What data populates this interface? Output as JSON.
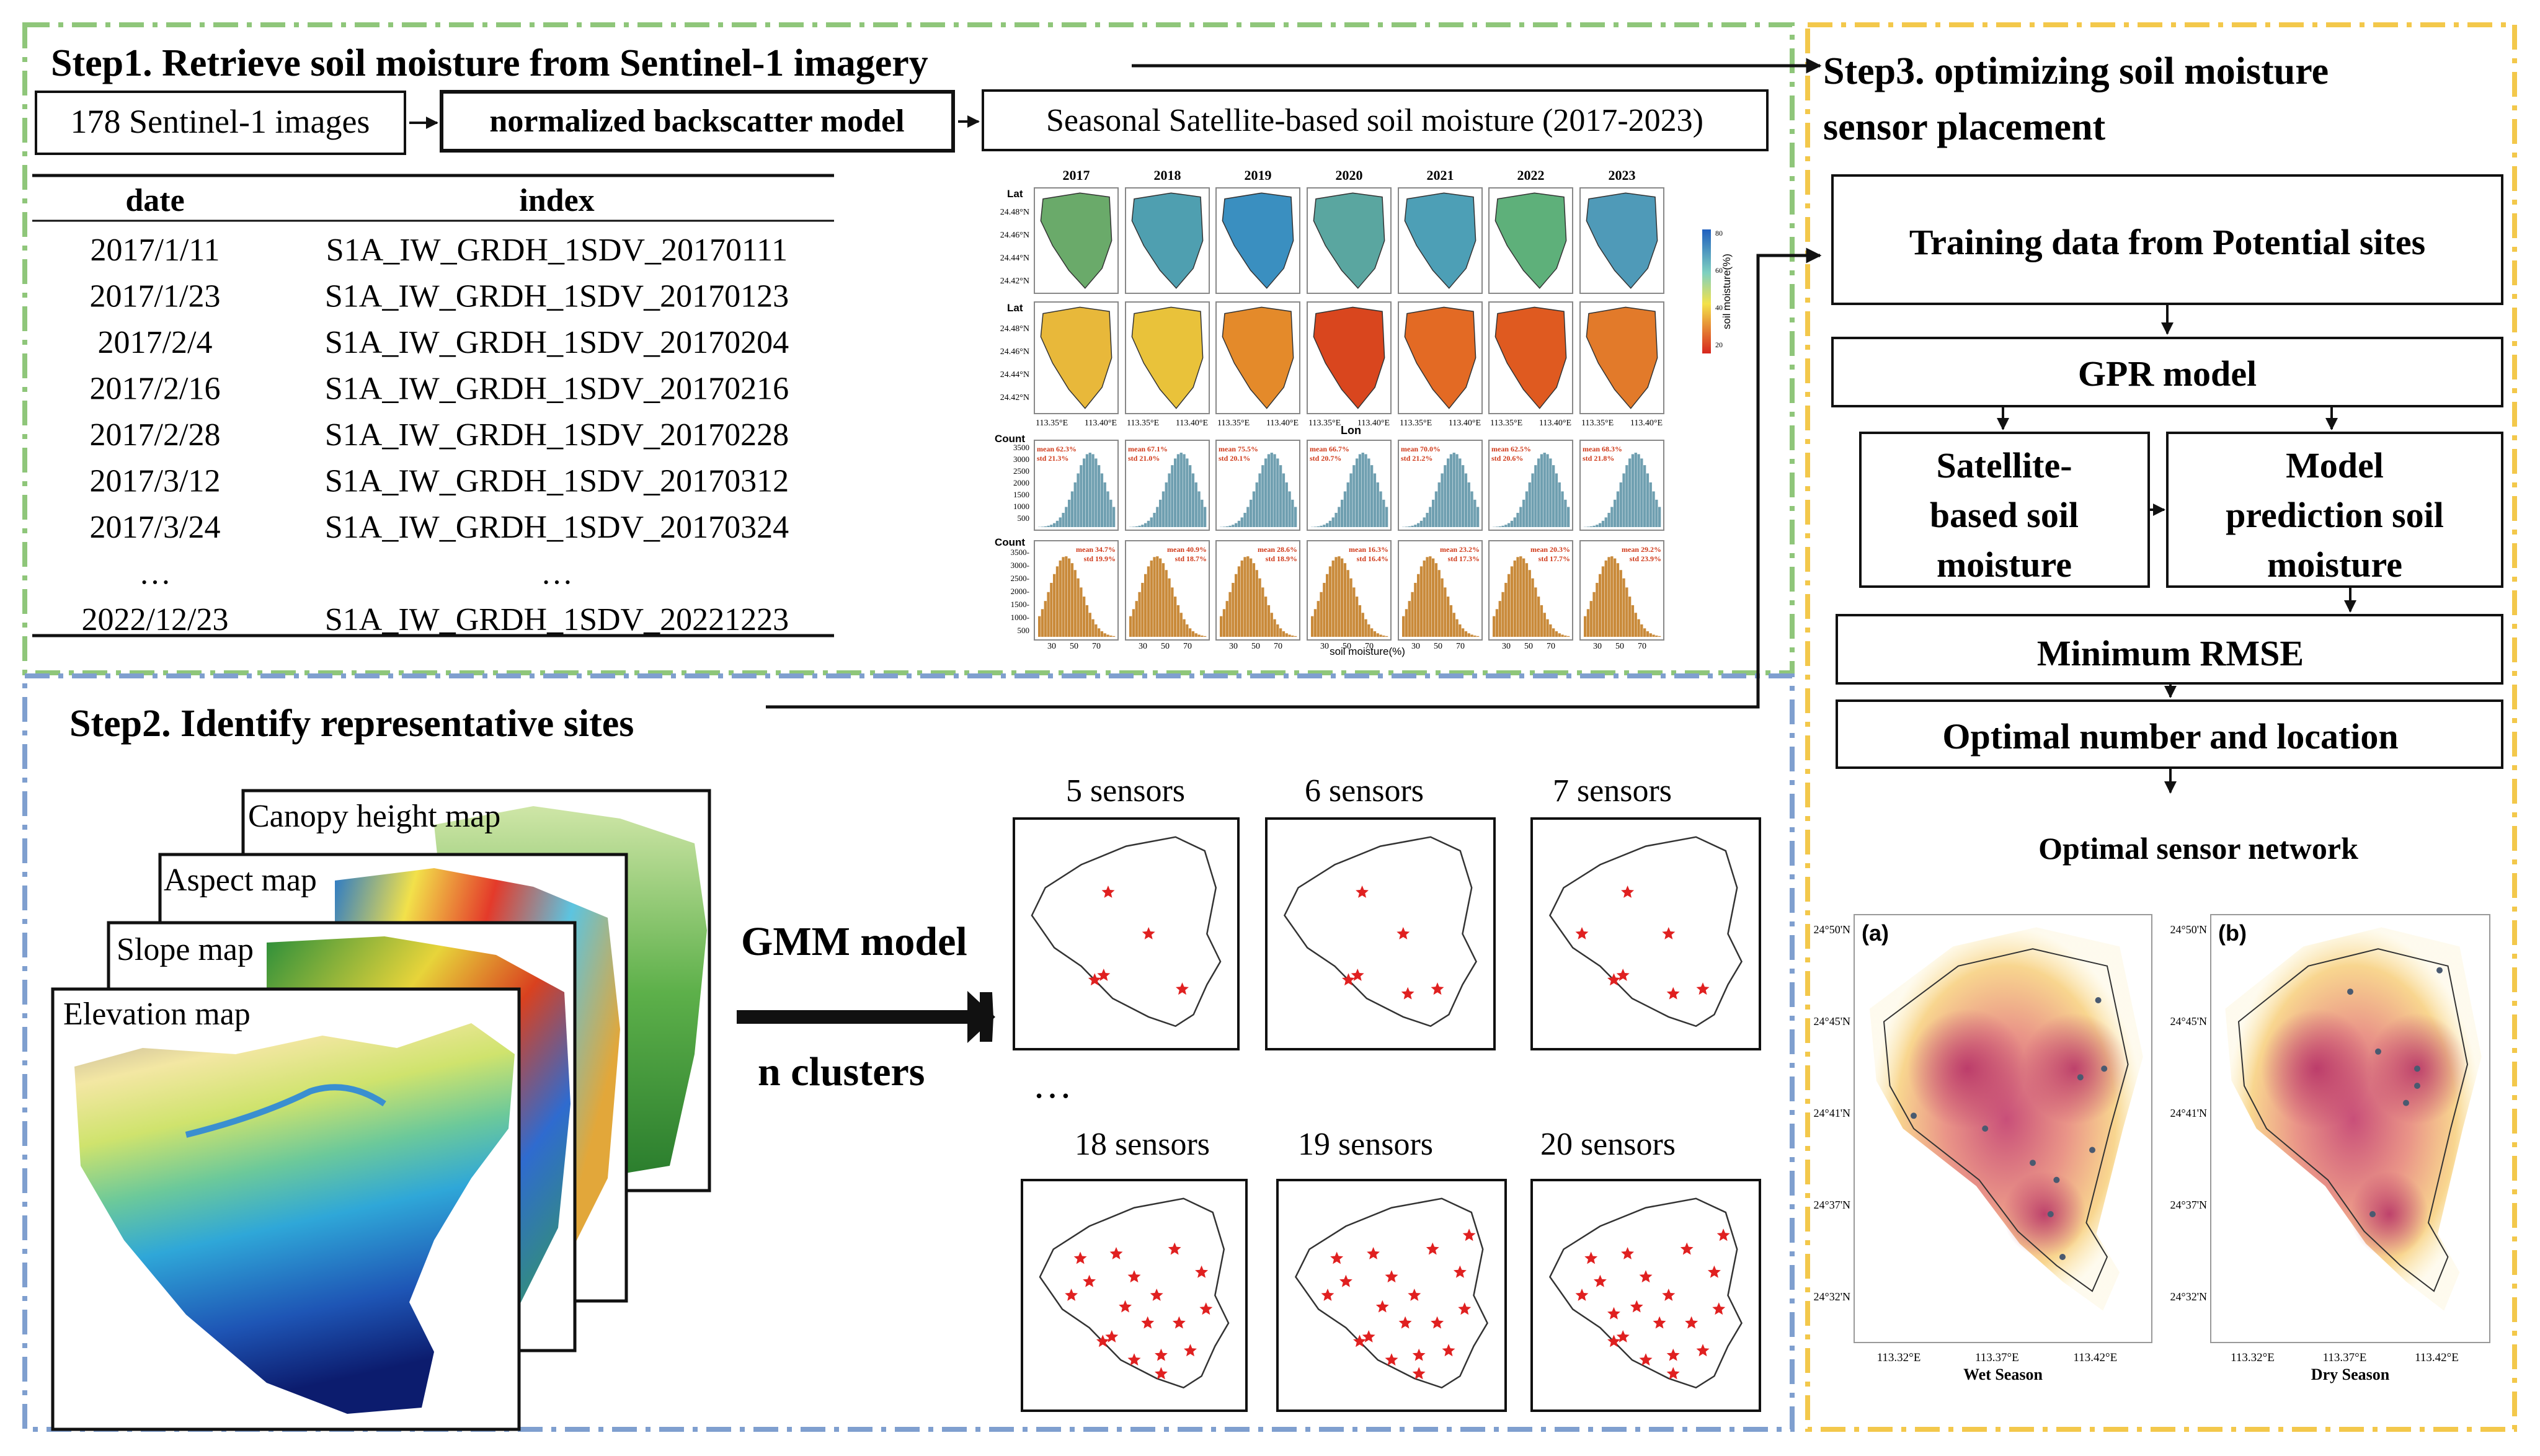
{
  "step1": {
    "title": "Step1. Retrieve soil moisture from Sentinel-1 imagery",
    "box_images": "178 Sentinel-1 images",
    "box_model": "normalized backscatter model",
    "box_seasonal": "Seasonal Satellite-based soil moisture (2017-2023)",
    "table": {
      "headers": [
        "date",
        "index"
      ],
      "rows": [
        [
          "2017/1/11",
          "S1A_IW_GRDH_1SDV_20170111"
        ],
        [
          "2017/1/23",
          "S1A_IW_GRDH_1SDV_20170123"
        ],
        [
          "2017/2/4",
          "S1A_IW_GRDH_1SDV_20170204"
        ],
        [
          "2017/2/16",
          "S1A_IW_GRDH_1SDV_20170216"
        ],
        [
          "2017/2/28",
          "S1A_IW_GRDH_1SDV_20170228"
        ],
        [
          "2017/3/12",
          "S1A_IW_GRDH_1SDV_20170312"
        ],
        [
          "2017/3/24",
          "S1A_IW_GRDH_1SDV_20170324"
        ],
        [
          "…",
          "…"
        ],
        [
          "2022/12/23",
          "S1A_IW_GRDH_1SDV_20221223"
        ]
      ]
    },
    "mini": {
      "years": [
        "2017",
        "2018",
        "2019",
        "2020",
        "2021",
        "2022",
        "2023"
      ],
      "lat_label": "Lat",
      "lat_ticks": [
        "24.48°N",
        "24.46°N",
        "24.44°N",
        "24.42°N"
      ],
      "lon_ticks": [
        "113.35°E",
        "113.40°E"
      ],
      "lon_label": "Lon",
      "colorbar_label": "soil moisture(%)",
      "colorbar_ticks": [
        "80",
        "60",
        "40",
        "20"
      ],
      "count_label": "Count",
      "hist1_ticks": [
        "3500",
        "3000",
        "2500",
        "2000",
        "1500",
        "1000",
        "500"
      ],
      "hist2_ticks": [
        "3500-",
        "3000-",
        "2500-",
        "2000-",
        "1500-",
        "1000-",
        "500"
      ],
      "x_ticks": [
        "30",
        "50",
        "70"
      ],
      "x_label": "soil moisture(%)",
      "wet_stats": [
        [
          "mean 62.3%",
          "std 21.3%"
        ],
        [
          "mean 67.1%",
          "std 21.0%"
        ],
        [
          "mean 75.5%",
          "std 20.1%"
        ],
        [
          "mean 66.7%",
          "std 20.7%"
        ],
        [
          "mean 70.0%",
          "std 21.2%"
        ],
        [
          "mean 62.5%",
          "std 20.6%"
        ],
        [
          "mean 68.3%",
          "std 21.8%"
        ]
      ],
      "dry_stats": [
        [
          "mean 34.7%",
          "std 19.9%"
        ],
        [
          "mean 40.9%",
          "std 18.7%"
        ],
        [
          "mean 28.6%",
          "std 18.9%"
        ],
        [
          "mean 16.3%",
          "std 16.4%"
        ],
        [
          "mean 23.2%",
          "std 17.3%"
        ],
        [
          "mean 20.3%",
          "std 17.7%"
        ],
        [
          "mean 29.2%",
          "std 23.9%"
        ]
      ]
    }
  },
  "step2": {
    "title": "Step2. Identify representative sites",
    "maps": [
      "Canopy height map",
      "Aspect map",
      "Slope map",
      "Elevation map"
    ],
    "gmm_label": "GMM model",
    "clusters_label": "n clusters",
    "ellipsis": "…",
    "sensor_panels": [
      {
        "label": "5 sensors",
        "count": 5
      },
      {
        "label": "6 sensors",
        "count": 6
      },
      {
        "label": "7 sensors",
        "count": 7
      },
      {
        "label": "18 sensors",
        "count": 18
      },
      {
        "label": "19 sensors",
        "count": 19
      },
      {
        "label": "20 sensors",
        "count": 20
      }
    ]
  },
  "step3": {
    "title_line1": "Step3. optimizing soil moisture",
    "title_line2": "sensor placement",
    "box_training": "Training data from Potential sites",
    "box_gpr": "GPR model",
    "box_satellite": [
      "Satellite-",
      "based soil",
      "moisture"
    ],
    "box_model_pred": [
      "Model",
      "prediction soil",
      "moisture"
    ],
    "box_rmse": "Minimum RMSE",
    "box_optimal": "Optimal number and location",
    "network_title": "Optimal sensor network",
    "panel_a": {
      "tag": "(a)",
      "season": "Wet Season"
    },
    "panel_b": {
      "tag": "(b)",
      "season": "Dry Season"
    },
    "lat_ticks": [
      "24°50'N",
      "24°45'N",
      "24°41'N",
      "24°37'N",
      "24°32'N"
    ],
    "lon_ticks": [
      "113.32°E",
      "113.37°E",
      "113.42°E"
    ]
  },
  "colors": {
    "green_dash": "#8fc67a",
    "blue_dash": "#7f9fcf",
    "yellow_dash": "#f3c84b",
    "star_red": "#e02020",
    "stats_red": "#d03a1a"
  }
}
